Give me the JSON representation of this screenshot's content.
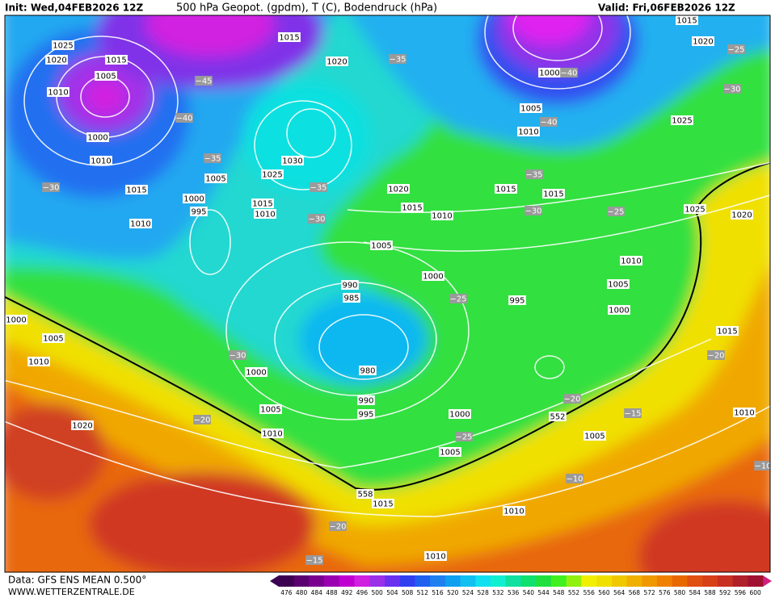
{
  "header": {
    "init": "Init: Wed,04FEB2026 12Z",
    "title": "500 hPa Geopot. (gpdm), T (C), Bodendruck (hPa)",
    "valid": "Valid: Fri,06FEB2026 12Z"
  },
  "map": {
    "pressure_labels": [
      "1025",
      "1020",
      "1015",
      "1005",
      "1010",
      "1000",
      "1010",
      "1015",
      "1010",
      "1005",
      "1000",
      "995",
      "1015",
      "1020",
      "1030",
      "1025",
      "1015",
      "1010",
      "1020",
      "1015",
      "1010",
      "1005",
      "1000",
      "990",
      "985",
      "980",
      "1000",
      "990",
      "995",
      "1005",
      "1010",
      "1000",
      "1005",
      "1015",
      "1010",
      "1010",
      "995",
      "1015",
      "1015",
      "1010",
      "1005",
      "1000",
      "1015",
      "1025",
      "1025",
      "1020",
      "1015",
      "1020",
      "1000",
      "1005",
      "1010",
      "1005",
      "1010",
      "1000",
      "1005",
      "1010",
      "1020"
    ],
    "geopotential_labels": [
      "558",
      "552"
    ],
    "temperature_labels": [
      "−35",
      "−45",
      "−40",
      "−40",
      "−40",
      "−35",
      "−30",
      "−35",
      "−30",
      "−35",
      "−30",
      "−25",
      "−25",
      "−30",
      "−25",
      "−30",
      "−20",
      "−20",
      "−25",
      "−15",
      "−20",
      "−10",
      "−20",
      "−15",
      "−10"
    ]
  },
  "footer": {
    "data": "Data: GFS ENS MEAN 0.500°",
    "site": "WWW.WETTERZENTRALE.DE"
  },
  "scale": {
    "labels": [
      476,
      480,
      484,
      488,
      492,
      496,
      500,
      504,
      508,
      512,
      516,
      520,
      524,
      528,
      532,
      536,
      540,
      544,
      548,
      552,
      556,
      560,
      564,
      568,
      572,
      576,
      580,
      584,
      588,
      592,
      596,
      600
    ],
    "colors": [
      "#3c0050",
      "#5a0070",
      "#7a0090",
      "#9a00b0",
      "#c000d0",
      "#d020e0",
      "#9a30e8",
      "#6a30f0",
      "#3040f0",
      "#2060f0",
      "#2080f0",
      "#10a0f0",
      "#10c0f0",
      "#10e0f0",
      "#10f0d0",
      "#10e0a0",
      "#10e070",
      "#20e040",
      "#40f020",
      "#90f010",
      "#f0f000",
      "#f0e000",
      "#f0c800",
      "#f0b000",
      "#f09800",
      "#f08000",
      "#e86800",
      "#e05010",
      "#d84018",
      "#c83020",
      "#b02028",
      "#a01030"
    ]
  }
}
